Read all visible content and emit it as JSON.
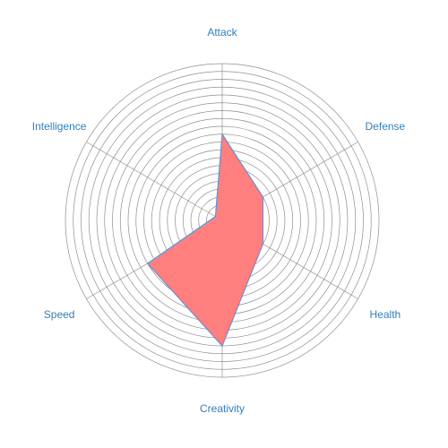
{
  "chart_data": {
    "type": "radar",
    "axes": [
      "Attack",
      "Defense",
      "Health",
      "Creativity",
      "Speed",
      "Intelligence"
    ],
    "series": [
      {
        "values": [
          110,
          60,
          60,
          160,
          110,
          10
        ]
      }
    ],
    "rlim": [
      0,
      200
    ],
    "ring_step": 10,
    "grid": true,
    "tick_labels_shown": false,
    "legend": "none",
    "colors": {
      "fill": "#ff7f7f",
      "stroke": "#6a8fd0",
      "grid": "#8f8f8f",
      "label": "#2f7fbf"
    }
  }
}
